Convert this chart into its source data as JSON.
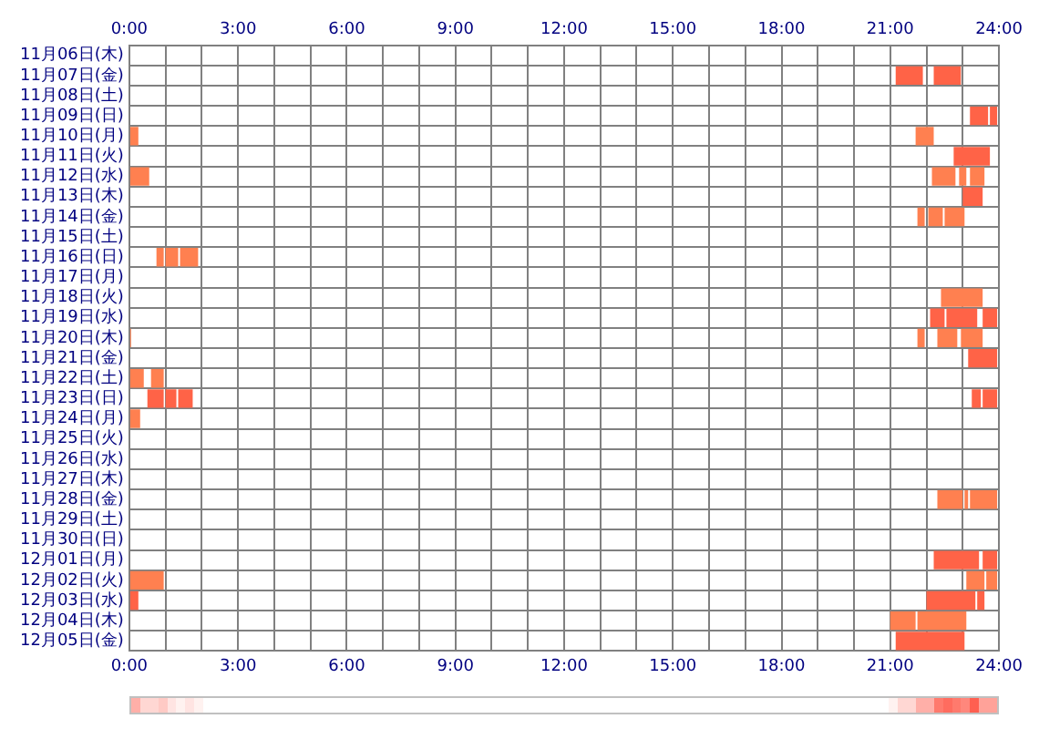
{
  "chart_data": {
    "type": "bar",
    "orientation": "horizontal",
    "grid": true,
    "legend": false,
    "categories": [
      "11月06日(木)",
      "11月07日(金)",
      "11月08日(土)",
      "11月09日(日)",
      "11月10日(月)",
      "11月11日(火)",
      "11月12日(水)",
      "11月13日(木)",
      "11月14日(金)",
      "11月15日(土)",
      "11月16日(日)",
      "11月17日(月)",
      "11月18日(火)",
      "11月19日(水)",
      "11月20日(木)",
      "11月21日(金)",
      "11月22日(土)",
      "11月23日(日)",
      "11月24日(月)",
      "11月25日(火)",
      "11月26日(水)",
      "11月27日(木)",
      "11月28日(金)",
      "11月29日(土)",
      "11月30日(日)",
      "12月01日(月)",
      "12月02日(火)",
      "12月03日(水)",
      "12月04日(木)",
      "12月05日(金)"
    ],
    "xlim": [
      0,
      24
    ],
    "xticks": [
      {
        "value": 0,
        "label": "0:00"
      },
      {
        "value": 1,
        "label": null
      },
      {
        "value": 2,
        "label": null
      },
      {
        "value": 3,
        "label": "3:00"
      },
      {
        "value": 4,
        "label": null
      },
      {
        "value": 5,
        "label": null
      },
      {
        "value": 6,
        "label": "6:00"
      },
      {
        "value": 7,
        "label": null
      },
      {
        "value": 8,
        "label": null
      },
      {
        "value": 9,
        "label": "9:00"
      },
      {
        "value": 10,
        "label": null
      },
      {
        "value": 11,
        "label": null
      },
      {
        "value": 12,
        "label": "12:00"
      },
      {
        "value": 13,
        "label": null
      },
      {
        "value": 14,
        "label": null
      },
      {
        "value": 15,
        "label": "15:00"
      },
      {
        "value": 16,
        "label": null
      },
      {
        "value": 17,
        "label": null
      },
      {
        "value": 18,
        "label": "18:00"
      },
      {
        "value": 19,
        "label": null
      },
      {
        "value": 20,
        "label": null
      },
      {
        "value": 21,
        "label": "21:00"
      },
      {
        "value": 22,
        "label": null
      },
      {
        "value": 23,
        "label": null
      },
      {
        "value": 24,
        "label": "24:00"
      }
    ],
    "x2lim": [
      0,
      24
    ],
    "x2ticks": [
      {
        "value": 0,
        "label": "0:00"
      },
      {
        "value": 3,
        "label": "3:00"
      },
      {
        "value": 6,
        "label": "6:00"
      },
      {
        "value": 9,
        "label": "9:00"
      },
      {
        "value": 12,
        "label": "12:00"
      },
      {
        "value": 15,
        "label": "15:00"
      },
      {
        "value": 18,
        "label": "18:00"
      },
      {
        "value": 21,
        "label": "21:00"
      },
      {
        "value": 24,
        "label": "24:00"
      }
    ],
    "series": [
      {
        "values": [
          null,
          0.75,
          null,
          0.5,
          0.25,
          1,
          0.55,
          0.55,
          0.2,
          null,
          0.2,
          null,
          1.15,
          0.4,
          0.05,
          0.8,
          0.4,
          0.45,
          0.3,
          null,
          null,
          null,
          0.7,
          null,
          null,
          1.25,
          0.95,
          0.25,
          0.7,
          1.9
        ],
        "base": [
          null,
          21.15,
          null,
          23.2,
          0,
          22.75,
          0,
          23,
          21.75,
          null,
          0.75,
          null,
          22.4,
          22.1,
          0,
          23.15,
          0,
          0.5,
          0,
          null,
          null,
          null,
          22.3,
          null,
          null,
          22.2,
          0,
          0,
          21,
          21.15
        ],
        "colors": [
          null,
          "#ff6347",
          null,
          "#ff6347",
          "#ff8050",
          "#ff6347",
          "#ff8050",
          "#ff6347",
          "#ff8050",
          null,
          "#ff8050",
          null,
          "#ff8050",
          "#ff6347",
          "#ff8050",
          "#ff6347",
          "#ff8050",
          "#ff6347",
          "#ff8050",
          null,
          null,
          null,
          "#ff8050",
          null,
          null,
          "#ff6347",
          "#ff8050",
          "#ff6347",
          "#ff8050",
          "#ff6347"
        ]
      },
      {
        "values": [
          null,
          0.75,
          null,
          0.2,
          0.5,
          null,
          0.65,
          null,
          0.4,
          null,
          0.35,
          null,
          null,
          0.85,
          0.2,
          null,
          0.35,
          0.3,
          null,
          null,
          null,
          null,
          0.1,
          null,
          null,
          0.4,
          0.5,
          1.35,
          1.35,
          null
        ],
        "base": [
          null,
          22.2,
          null,
          23.75,
          21.7,
          null,
          22.15,
          null,
          22.05,
          null,
          1,
          null,
          null,
          22.55,
          21.75,
          null,
          0.6,
          1,
          null,
          null,
          null,
          null,
          23.05,
          null,
          null,
          23.55,
          23.1,
          22,
          21.75,
          null
        ],
        "colors": [
          null,
          "#ff6347",
          null,
          "#ff6347",
          "#ff8050",
          null,
          "#ff8050",
          null,
          "#ff8050",
          null,
          "#ff8050",
          null,
          null,
          "#ff6347",
          "#ff8050",
          null,
          "#ff8050",
          "#ff6347",
          null,
          null,
          null,
          null,
          "#ff8050",
          null,
          null,
          "#ff6347",
          "#ff8050",
          "#ff6347",
          "#ff8050",
          null
        ]
      },
      {
        "values": [
          null,
          null,
          null,
          null,
          null,
          null,
          0.2,
          null,
          0.55,
          null,
          0.5,
          null,
          null,
          0.4,
          0.55,
          null,
          null,
          0.4,
          null,
          null,
          null,
          null,
          0.75,
          null,
          null,
          null,
          0.3,
          0.2,
          null,
          null
        ],
        "base": [
          null,
          null,
          null,
          null,
          null,
          null,
          22.9,
          null,
          22.5,
          null,
          1.4,
          null,
          null,
          23.55,
          22.3,
          null,
          null,
          1.35,
          null,
          null,
          null,
          null,
          23.2,
          null,
          null,
          null,
          23.65,
          23.4,
          null,
          null
        ],
        "colors": [
          null,
          null,
          null,
          null,
          null,
          null,
          "#ff8050",
          null,
          "#ff8050",
          null,
          "#ff8050",
          null,
          null,
          "#ff6347",
          "#ff8050",
          null,
          null,
          "#ff6347",
          null,
          null,
          null,
          null,
          "#ff8050",
          null,
          null,
          null,
          "#ff8050",
          "#ff6347",
          null,
          null
        ]
      },
      {
        "values": [
          null,
          null,
          null,
          null,
          null,
          null,
          0.4,
          null,
          null,
          null,
          null,
          null,
          null,
          null,
          0.6,
          null,
          null,
          0.25,
          null,
          null,
          null,
          null,
          null,
          null,
          null,
          null,
          null,
          null,
          null,
          null
        ],
        "base": [
          null,
          null,
          null,
          null,
          null,
          null,
          23.2,
          null,
          null,
          null,
          null,
          null,
          null,
          null,
          22.95,
          null,
          null,
          23.25,
          null,
          null,
          null,
          null,
          null,
          null,
          null,
          null,
          null,
          null,
          null,
          null
        ],
        "colors": [
          null,
          null,
          null,
          null,
          null,
          null,
          "#ff8050",
          null,
          null,
          null,
          null,
          null,
          null,
          null,
          "#ff8050",
          null,
          null,
          "#ff6347",
          null,
          null,
          null,
          null,
          null,
          null,
          null,
          null,
          null,
          null,
          null,
          null
        ]
      },
      {
        "values": [
          null,
          null,
          null,
          null,
          null,
          null,
          null,
          null,
          null,
          null,
          null,
          null,
          null,
          null,
          null,
          null,
          null,
          0.4,
          null,
          null,
          null,
          null,
          null,
          null,
          null,
          null,
          null,
          null,
          null,
          null
        ],
        "base": [
          null,
          null,
          null,
          null,
          null,
          null,
          null,
          null,
          null,
          null,
          null,
          null,
          null,
          null,
          null,
          null,
          null,
          23.55,
          null,
          null,
          null,
          null,
          null,
          null,
          null,
          null,
          null,
          null,
          null,
          null
        ],
        "colors": [
          null,
          null,
          null,
          null,
          null,
          null,
          null,
          null,
          null,
          null,
          null,
          null,
          null,
          null,
          null,
          null,
          null,
          "#ff6347",
          null,
          null,
          null,
          null,
          null,
          null,
          null,
          null,
          null,
          null,
          null,
          null
        ]
      }
    ]
  }
}
